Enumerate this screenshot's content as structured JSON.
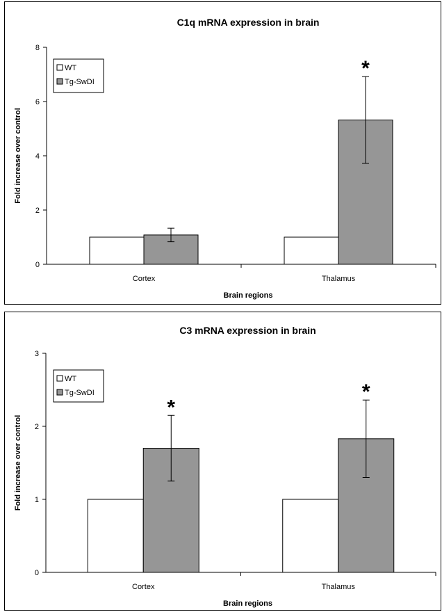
{
  "chart_data": [
    {
      "type": "bar",
      "title": "C1q mRNA expression in brain",
      "xlabel": "Brain regions",
      "ylabel": "Fold increase over control",
      "ylim": [
        0,
        8
      ],
      "yticks": [
        0,
        2,
        4,
        6,
        8
      ],
      "categories": [
        "Cortex",
        "Thalamus"
      ],
      "series": [
        {
          "name": "WT",
          "values": [
            1.0,
            1.0
          ],
          "errors": [
            null,
            null
          ],
          "significance": [
            "",
            ""
          ],
          "color": "#ffffff"
        },
        {
          "name": "Tg-SwDI",
          "values": [
            1.08,
            5.32
          ],
          "errors": [
            0.25,
            1.6
          ],
          "significance": [
            "",
            "*"
          ],
          "color": "#969696"
        }
      ],
      "legend": "top-left",
      "grid": false
    },
    {
      "type": "bar",
      "title": "C3 mRNA expression in brain",
      "xlabel": "Brain regions",
      "ylabel": "Fold increase over control",
      "ylim": [
        0,
        3
      ],
      "yticks": [
        0,
        1,
        2,
        3
      ],
      "categories": [
        "Cortex",
        "Thalamus"
      ],
      "series": [
        {
          "name": "WT",
          "values": [
            1.0,
            1.0
          ],
          "errors": [
            null,
            null
          ],
          "significance": [
            "",
            ""
          ],
          "color": "#ffffff"
        },
        {
          "name": "Tg-SwDI",
          "values": [
            1.7,
            1.83
          ],
          "errors": [
            0.45,
            0.53
          ],
          "significance": [
            "*",
            "*"
          ],
          "color": "#969696"
        }
      ],
      "legend": "top-left",
      "grid": false
    }
  ]
}
